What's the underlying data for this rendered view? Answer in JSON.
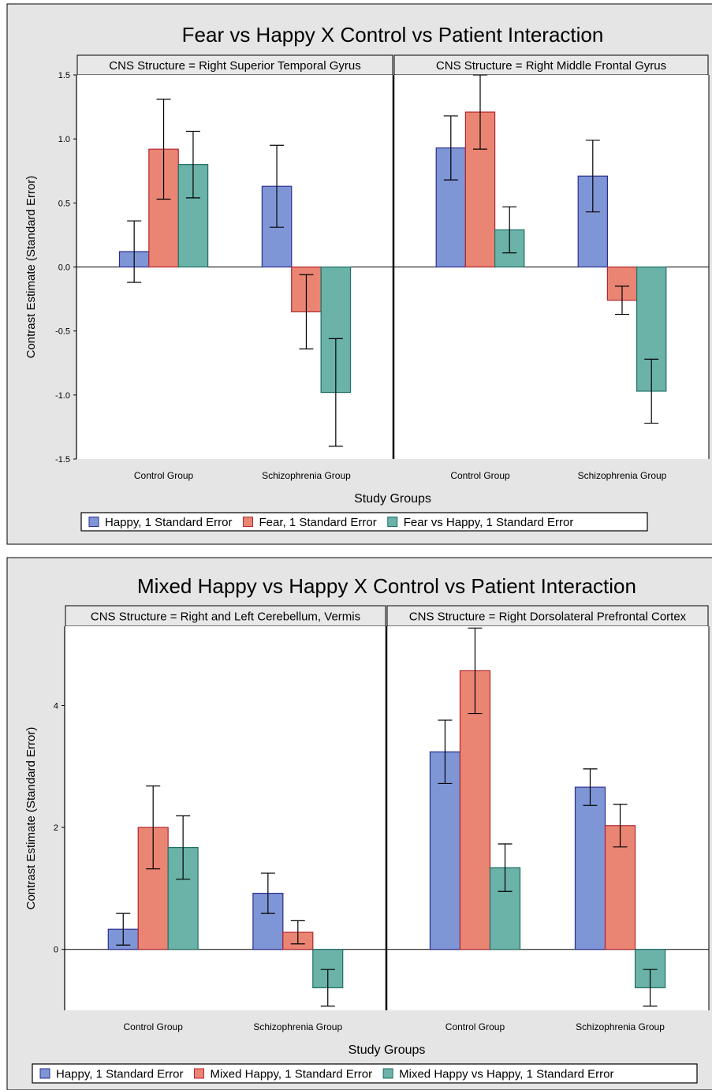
{
  "colors": {
    "happy": "#7f96d6",
    "happy_edge": "#2b2d8e",
    "fear": "#ea8573",
    "fear_edge": "#b3262f",
    "diff": "#6bb2a8",
    "diff_edge": "#1f6f63",
    "background": "#e5e5e5"
  },
  "chart_data": [
    {
      "type": "bar",
      "title": "Fear vs Happy X Control vs Patient Interaction",
      "xlabel": "Study Groups",
      "ylabel": "Contrast Estimate (Standard Error)",
      "ylim": [
        -1.5,
        1.5
      ],
      "yticks": [
        "1.5",
        "1.0",
        "0.5",
        "0.0",
        "-0.5",
        "-1.0",
        "-1.5"
      ],
      "ytick_values": [
        1.5,
        1.0,
        0.5,
        0.0,
        -0.5,
        -1.0,
        -1.5
      ],
      "legend": [
        "Happy, 1 Standard Error",
        "Fear, 1 Standard Error",
        "Fear vs Happy, 1 Standard Error"
      ],
      "categories": [
        "Control Group",
        "Schizophrenia Group"
      ],
      "panels": [
        {
          "label": "CNS Structure = Right Superior Temporal Gyrus",
          "series": [
            {
              "name": "Happy",
              "values": [
                0.12,
                0.63
              ],
              "err": [
                0.24,
                0.32
              ]
            },
            {
              "name": "Fear",
              "values": [
                0.92,
                -0.35
              ],
              "err": [
                0.39,
                0.29
              ]
            },
            {
              "name": "Fear vs Happy",
              "values": [
                0.8,
                -0.98
              ],
              "err": [
                0.26,
                0.42
              ]
            }
          ]
        },
        {
          "label": "CNS Structure = Right Middle Frontal Gyrus",
          "series": [
            {
              "name": "Happy",
              "values": [
                0.93,
                0.71
              ],
              "err": [
                0.25,
                0.28
              ]
            },
            {
              "name": "Fear",
              "values": [
                1.21,
                -0.26
              ],
              "err": [
                0.29,
                0.11
              ]
            },
            {
              "name": "Fear vs Happy",
              "values": [
                0.29,
                -0.97
              ],
              "err": [
                0.18,
                0.25
              ]
            }
          ]
        }
      ]
    },
    {
      "type": "bar",
      "title": "Mixed Happy vs Happy X Control vs Patient Interaction",
      "xlabel": "Study Groups",
      "ylabel": "Contrast Estimate (Standard Error)",
      "ylim": [
        -1.0,
        5.3
      ],
      "yticks": [
        "4",
        "2",
        "0"
      ],
      "ytick_values": [
        4,
        2,
        0
      ],
      "legend": [
        "Happy, 1 Standard Error",
        "Mixed Happy, 1 Standard Error",
        "Mixed Happy vs Happy, 1 Standard Error"
      ],
      "categories": [
        "Control Group",
        "Schizophrenia Group"
      ],
      "panels": [
        {
          "label": "CNS Structure = Right and Left Cerebellum, Vermis",
          "series": [
            {
              "name": "Happy",
              "values": [
                0.33,
                0.92
              ],
              "err": [
                0.26,
                0.33
              ]
            },
            {
              "name": "Mixed Happy",
              "values": [
                2.0,
                0.28
              ],
              "err": [
                0.68,
                0.19
              ]
            },
            {
              "name": "Mixed Happy vs Happy",
              "values": [
                1.67,
                -0.63
              ],
              "err": [
                0.52,
                0.3
              ]
            }
          ]
        },
        {
          "label": "CNS Structure = Right Dorsolateral Prefrontal Cortex",
          "series": [
            {
              "name": "Happy",
              "values": [
                3.24,
                2.66
              ],
              "err": [
                0.52,
                0.3
              ]
            },
            {
              "name": "Mixed Happy",
              "values": [
                4.57,
                2.03
              ],
              "err": [
                0.7,
                0.35
              ]
            },
            {
              "name": "Mixed Happy vs Happy",
              "values": [
                1.34,
                -0.63
              ],
              "err": [
                0.39,
                0.3
              ]
            }
          ]
        }
      ]
    }
  ]
}
